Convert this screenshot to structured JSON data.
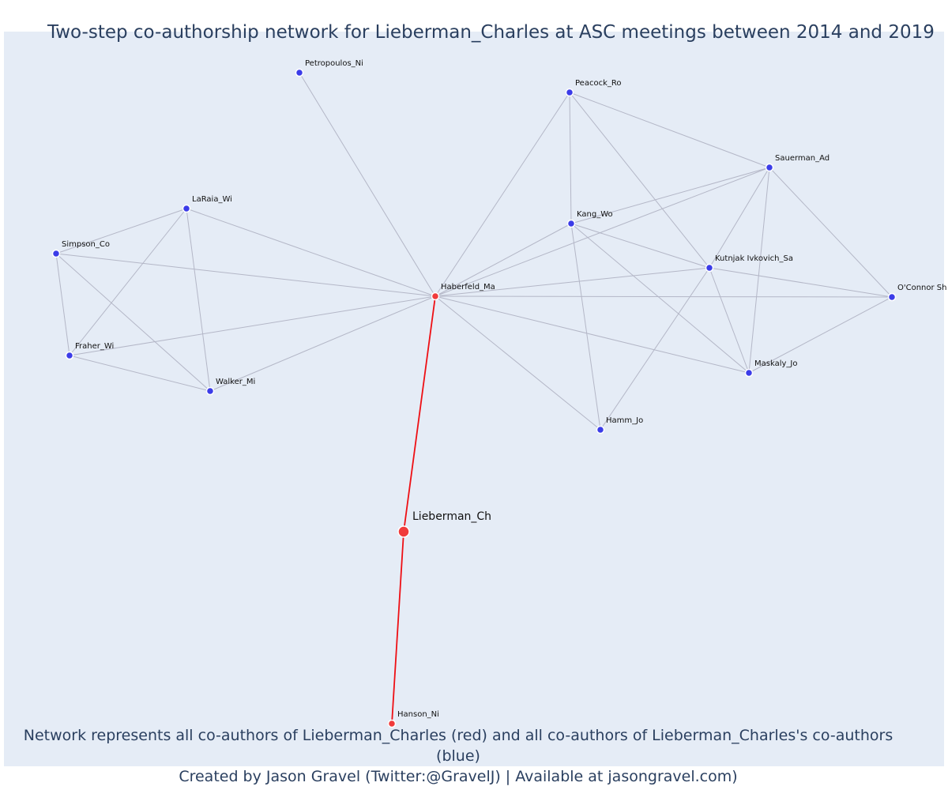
{
  "title": "Two-step co-authorship network for Lieberman_Charles at ASC meetings between 2014 and 2019",
  "caption": {
    "line1": "Network represents all co-authors of Lieberman_Charles (red) and all co-authors of Lieberman_Charles's co-authors (blue)",
    "line2": "Created by Jason Gravel (Twitter:@GravelJ) | Available at jasongravel.com)"
  },
  "colors": {
    "direct": "#f03b3b",
    "indirect": "#3b3ce8",
    "direct_edge": "#ee0f14",
    "other_edge": "#b4b7c7"
  },
  "network": {
    "nodes": [
      {
        "id": "Lieberman_Ch",
        "label": "Lieberman_Ch",
        "group": "focal"
      },
      {
        "id": "Haberfeld_Ma",
        "label": "Haberfeld_Ma",
        "group": "direct"
      },
      {
        "id": "Hanson_Ni",
        "label": "Hanson_Ni",
        "group": "direct"
      },
      {
        "id": "Petropoulos_Ni",
        "label": "Petropoulos_Ni",
        "group": "indirect"
      },
      {
        "id": "Peacock_Ro",
        "label": "Peacock_Ro",
        "group": "indirect"
      },
      {
        "id": "Sauerman_Ad",
        "label": "Sauerman_Ad",
        "group": "indirect"
      },
      {
        "id": "Kang_Wo",
        "label": "Kang_Wo",
        "group": "indirect"
      },
      {
        "id": "Kutnjak_Ivkovich_Sa",
        "label": "Kutnjak Ivkovich_Sa",
        "group": "indirect"
      },
      {
        "id": "OConnor_Sh",
        "label": "O'Connor Sh",
        "group": "indirect"
      },
      {
        "id": "Maskaly_Jo",
        "label": "Maskaly_Jo",
        "group": "indirect"
      },
      {
        "id": "Hamm_Jo",
        "label": "Hamm_Jo",
        "group": "indirect"
      },
      {
        "id": "LaRaia_Wi",
        "label": "LaRaia_Wi",
        "group": "indirect"
      },
      {
        "id": "Simpson_Co",
        "label": "Simpson_Co",
        "group": "indirect"
      },
      {
        "id": "Fraher_Wi",
        "label": "Fraher_Wi",
        "group": "indirect"
      },
      {
        "id": "Walker_Mi",
        "label": "Walker_Mi",
        "group": "indirect"
      }
    ],
    "edges": [
      [
        "Lieberman_Ch",
        "Haberfeld_Ma",
        "direct"
      ],
      [
        "Lieberman_Ch",
        "Hanson_Ni",
        "direct"
      ],
      [
        "Haberfeld_Ma",
        "Petropoulos_Ni"
      ],
      [
        "Haberfeld_Ma",
        "Peacock_Ro"
      ],
      [
        "Haberfeld_Ma",
        "Sauerman_Ad"
      ],
      [
        "Haberfeld_Ma",
        "Kang_Wo"
      ],
      [
        "Haberfeld_Ma",
        "Kutnjak_Ivkovich_Sa"
      ],
      [
        "Haberfeld_Ma",
        "OConnor_Sh"
      ],
      [
        "Haberfeld_Ma",
        "Maskaly_Jo"
      ],
      [
        "Haberfeld_Ma",
        "Hamm_Jo"
      ],
      [
        "Haberfeld_Ma",
        "LaRaia_Wi"
      ],
      [
        "Haberfeld_Ma",
        "Simpson_Co"
      ],
      [
        "Haberfeld_Ma",
        "Fraher_Wi"
      ],
      [
        "Haberfeld_Ma",
        "Walker_Mi"
      ],
      [
        "Peacock_Ro",
        "Sauerman_Ad"
      ],
      [
        "Peacock_Ro",
        "Kang_Wo"
      ],
      [
        "Peacock_Ro",
        "Kutnjak_Ivkovich_Sa"
      ],
      [
        "Sauerman_Ad",
        "Kang_Wo"
      ],
      [
        "Sauerman_Ad",
        "Kutnjak_Ivkovich_Sa"
      ],
      [
        "Sauerman_Ad",
        "OConnor_Sh"
      ],
      [
        "Sauerman_Ad",
        "Maskaly_Jo"
      ],
      [
        "Kang_Wo",
        "Kutnjak_Ivkovich_Sa"
      ],
      [
        "Kang_Wo",
        "Maskaly_Jo"
      ],
      [
        "Kang_Wo",
        "Hamm_Jo"
      ],
      [
        "Kutnjak_Ivkovich_Sa",
        "OConnor_Sh"
      ],
      [
        "Kutnjak_Ivkovich_Sa",
        "Maskaly_Jo"
      ],
      [
        "Kutnjak_Ivkovich_Sa",
        "Hamm_Jo"
      ],
      [
        "OConnor_Sh",
        "Maskaly_Jo"
      ],
      [
        "LaRaia_Wi",
        "Simpson_Co"
      ],
      [
        "LaRaia_Wi",
        "Fraher_Wi"
      ],
      [
        "LaRaia_Wi",
        "Walker_Mi"
      ],
      [
        "Simpson_Co",
        "Fraher_Wi"
      ],
      [
        "Simpson_Co",
        "Walker_Mi"
      ],
      [
        "Fraher_Wi",
        "Walker_Mi"
      ]
    ]
  }
}
